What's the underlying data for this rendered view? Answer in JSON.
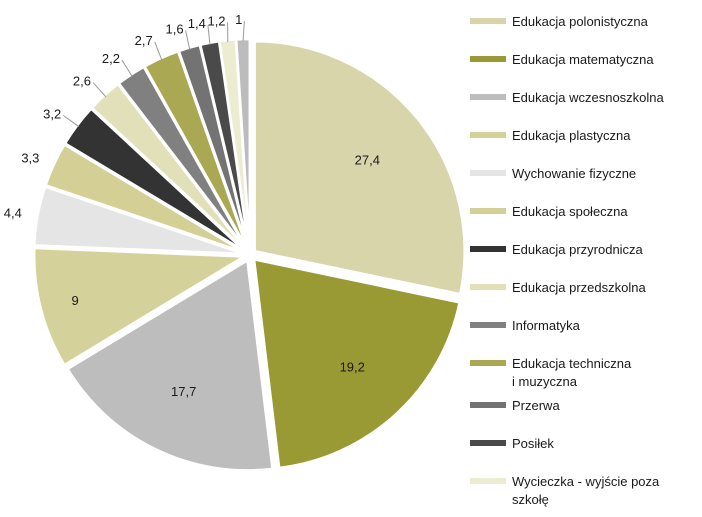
{
  "chart_data": {
    "type": "pie",
    "title": "",
    "categories": [
      "Edukacja polonistyczna",
      "Edukacja matematyczna",
      "Edukacja wczesnoszkolna",
      "Edukacja plastyczna",
      "Wychowanie fizyczne",
      "Edukacja społeczna",
      "Edukacja przyrodnicza",
      "Edukacja przedszkolna",
      "Informatyka",
      "Edukacja techniczna i muzyczna",
      "Przerwa",
      "Posiłek",
      "Wycieczka - wyjście poza szkołę",
      ""
    ],
    "legend_lines": [
      [
        "Edukacja polonistyczna"
      ],
      [
        "Edukacja matematyczna"
      ],
      [
        "Edukacja wczesnoszkolna"
      ],
      [
        "Edukacja plastyczna"
      ],
      [
        "Wychowanie fizyczne"
      ],
      [
        "Edukacja społeczna"
      ],
      [
        "Edukacja przyrodnicza"
      ],
      [
        "Edukacja przedszkolna"
      ],
      [
        "Informatyka"
      ],
      [
        "Edukacja techniczna",
        "i muzyczna"
      ],
      [
        "Przerwa"
      ],
      [
        "Posiłek"
      ],
      [
        "Wycieczka - wyjście poza",
        "szkołę"
      ]
    ],
    "values": [
      27.4,
      19.2,
      17.7,
      9,
      4.4,
      3.3,
      3.2,
      2.6,
      2.2,
      2.7,
      1.6,
      1.4,
      1.2,
      1
    ],
    "value_labels": [
      "27,4",
      "19,2",
      "17,7",
      "9",
      "4,4",
      "3,3",
      "3,2",
      "2,6",
      "2,2",
      "2,7",
      "1,6",
      "1,4",
      "1,2",
      "1"
    ],
    "colors": [
      "#d8d5ab",
      "#9a9a35",
      "#bdbdbd",
      "#d5d19b",
      "#e5e5e5",
      "#d3cf95",
      "#333333",
      "#e2e0b8",
      "#808080",
      "#aaa853",
      "#737373",
      "#4a4a4a",
      "#ececd3",
      "#bcbcbc"
    ],
    "slice_order": [
      0,
      1,
      2,
      3,
      4,
      5,
      6,
      7,
      8,
      9,
      10,
      11,
      12,
      13
    ],
    "legend_placement": "right"
  }
}
